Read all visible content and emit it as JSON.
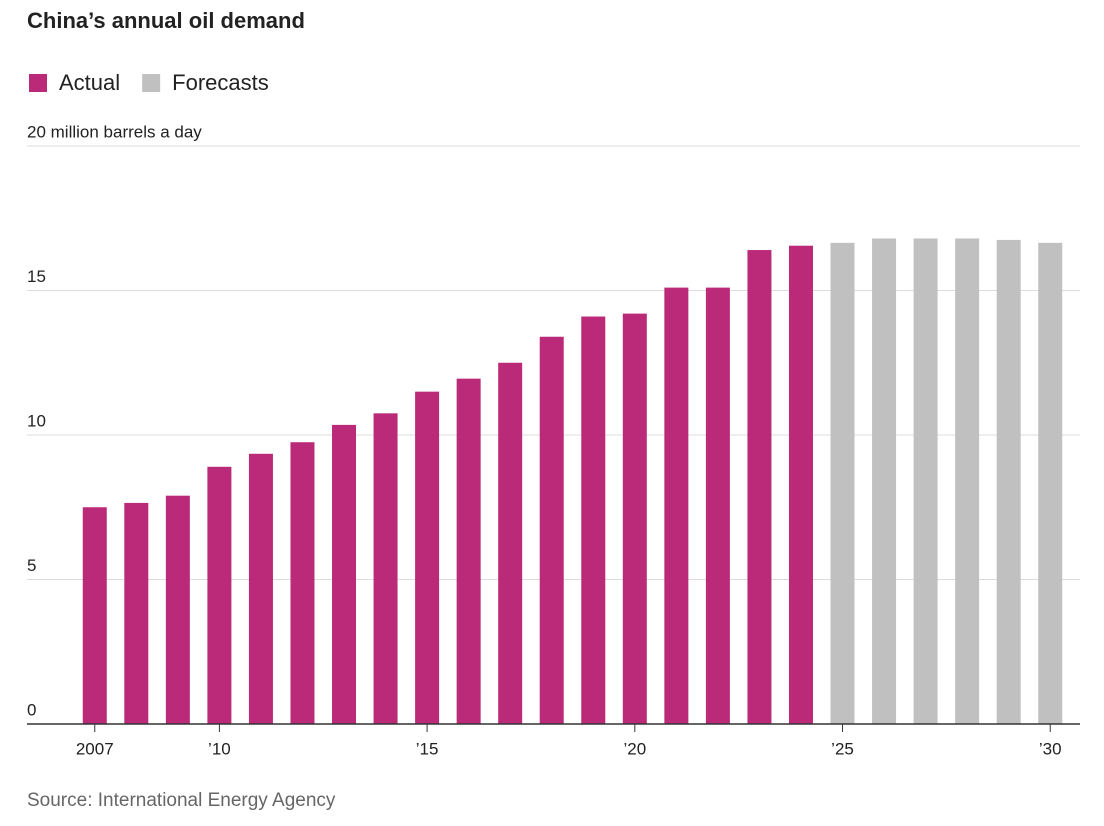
{
  "chart_data": {
    "type": "bar",
    "title": "China’s annual oil demand",
    "source": "Source: International Energy Agency",
    "categories": [
      "2007",
      null,
      null,
      "’10",
      null,
      null,
      null,
      null,
      "’15",
      null,
      null,
      null,
      null,
      "’20",
      null,
      null,
      null,
      null,
      "’25",
      null,
      null,
      null,
      null,
      "’30"
    ],
    "series": [
      {
        "name": "Actual",
        "color": "#bb2a79",
        "values": [
          7.5,
          7.65,
          7.9,
          8.9,
          9.35,
          9.75,
          10.35,
          10.75,
          11.5,
          11.95,
          12.5,
          13.4,
          14.1,
          14.2,
          15.1,
          15.1,
          16.4,
          16.55,
          null,
          null,
          null,
          null,
          null,
          null
        ]
      },
      {
        "name": "Forecasts",
        "color": "#c0c0c0",
        "values": [
          null,
          null,
          null,
          null,
          null,
          null,
          null,
          null,
          null,
          null,
          null,
          null,
          null,
          null,
          null,
          null,
          null,
          null,
          16.65,
          16.8,
          16.8,
          16.8,
          16.75,
          16.65
        ]
      }
    ],
    "ylim": [
      0,
      20
    ],
    "yticks": [
      0,
      5,
      10,
      15,
      {
        "value": 20,
        "label": "20 million barrels a day"
      }
    ],
    "grid": true
  }
}
